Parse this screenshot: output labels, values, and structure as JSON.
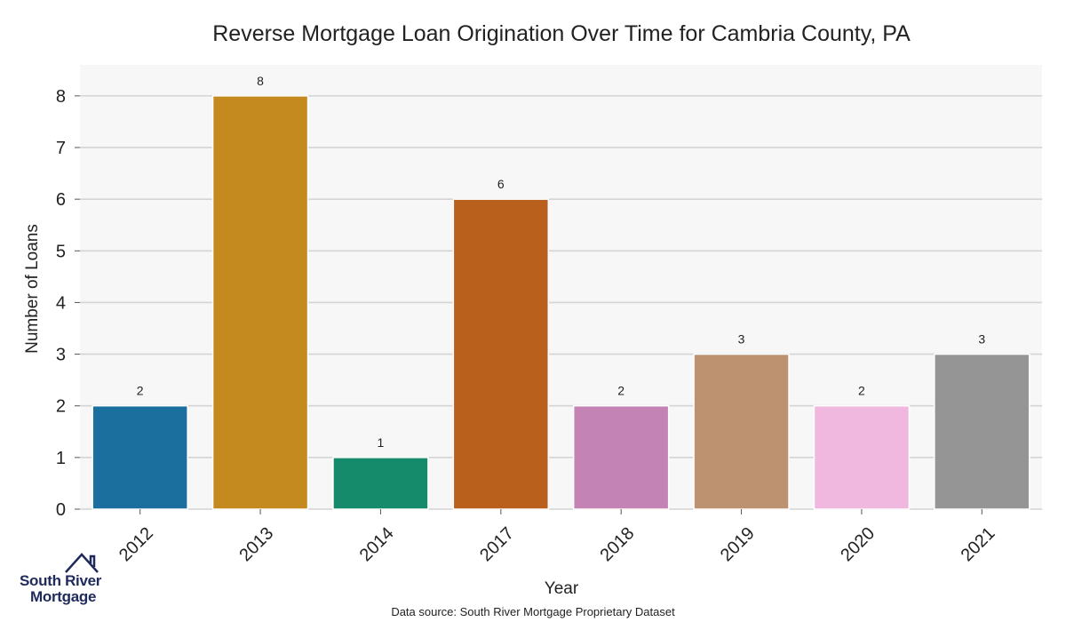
{
  "chart_data": {
    "type": "bar",
    "title": "Reverse Mortgage Loan Origination Over Time for Cambria County, PA",
    "xlabel": "Year",
    "ylabel": "Number of Loans",
    "categories": [
      "2012",
      "2013",
      "2014",
      "2017",
      "2018",
      "2019",
      "2020",
      "2021"
    ],
    "values": [
      2,
      8,
      1,
      6,
      2,
      3,
      2,
      3
    ],
    "data_labels": [
      "2",
      "8",
      "1",
      "6",
      "2",
      "3",
      "2",
      "3"
    ],
    "colors": [
      "#1a6f9e",
      "#c4891f",
      "#168b6b",
      "#b9601d",
      "#c483b5",
      "#bc9270",
      "#f0b8df",
      "#959595"
    ],
    "ylim": [
      0,
      8.6
    ],
    "yticks": [
      0,
      1,
      2,
      3,
      4,
      5,
      6,
      7,
      8
    ],
    "grid": true,
    "legend": "none",
    "source": "Data source: South River Mortgage Proprietary Dataset"
  },
  "logo": {
    "line1": "South River",
    "line2": "Mortgage"
  }
}
